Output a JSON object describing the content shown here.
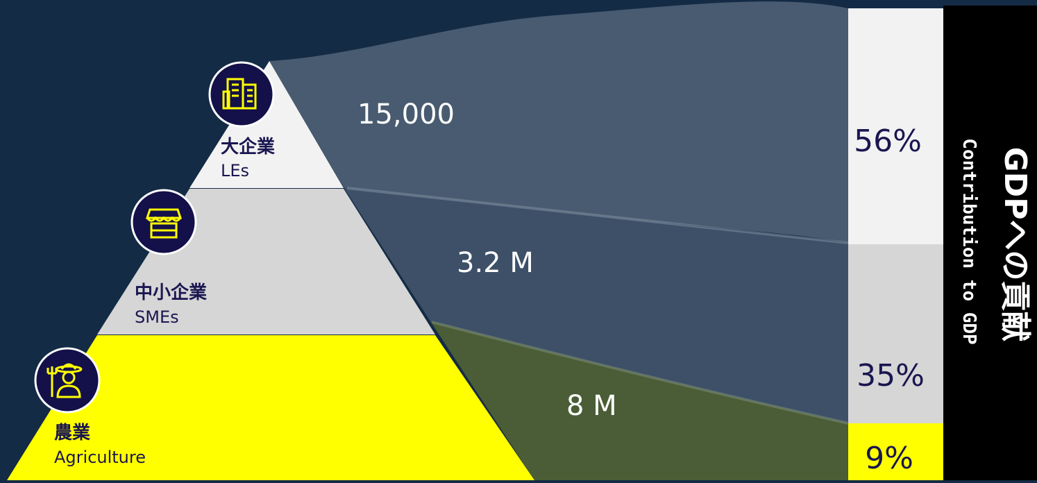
{
  "tiers": [
    {
      "id": "les",
      "label_ja": "大企業",
      "label_en": "LEs",
      "count": "15,000",
      "share": "56%",
      "share_value": 56,
      "icon": "office-buildings-icon",
      "color": "#f2f2f2"
    },
    {
      "id": "smes",
      "label_ja": "中小企業",
      "label_en": "SMEs",
      "count": "3.2 M",
      "share": "35%",
      "share_value": 35,
      "icon": "storefront-icon",
      "color": "#d6d6d6"
    },
    {
      "id": "agriculture",
      "label_ja": "農業",
      "label_en": "Agriculture",
      "count": "8 M",
      "share": "9%",
      "share_value": 9,
      "icon": "farmer-icon",
      "color": "#ffff00"
    }
  ],
  "banner": {
    "title_ja": "GDPへの貢献",
    "title_en": "Contribution to GDP"
  },
  "colors": {
    "background": "#142b45",
    "flow_les": "#485b70",
    "flow_smes": "#3d5068",
    "flow_agriculture": "#4a5d36",
    "icon_circle": "#14104a",
    "icon_ring": "#ffffff",
    "icon_glyph": "#ffff00",
    "text_dark": "#1a1650",
    "banner_bg": "#000000"
  }
}
